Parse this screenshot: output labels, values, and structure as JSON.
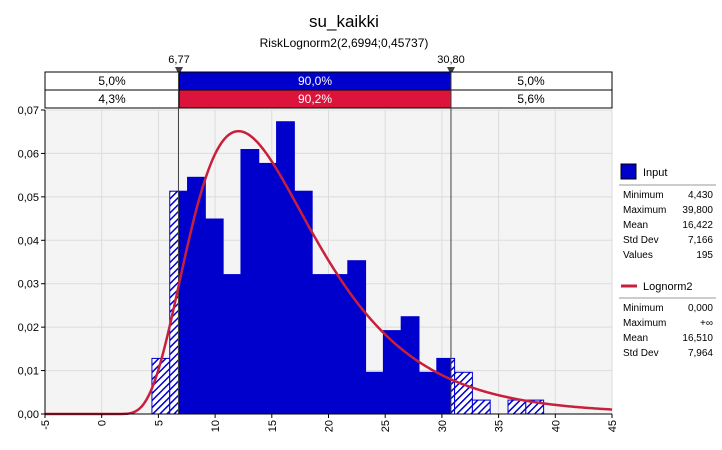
{
  "chart_data": {
    "type": "bar",
    "title": "su_kaikki",
    "subtitle": "RiskLognorm2(2,6994;0,45737)",
    "markers": {
      "left": "6,77",
      "right": "30,80",
      "left_value": 6.77,
      "right_value": 30.8
    },
    "bands": {
      "input": {
        "left": "5,0%",
        "middle": "90,0%",
        "right": "5,0%"
      },
      "fit": {
        "left": "4,3%",
        "middle": "90,2%",
        "right": "5,6%"
      }
    },
    "xlim": [
      -5,
      45
    ],
    "ylim": [
      0,
      0.07
    ],
    "x_ticks": [
      "-5",
      "0",
      "5",
      "10",
      "15",
      "20",
      "25",
      "30",
      "35",
      "40",
      "45"
    ],
    "x_tick_values": [
      -5,
      0,
      5,
      10,
      15,
      20,
      25,
      30,
      35,
      40,
      45
    ],
    "y_ticks": [
      "0,00",
      "0,01",
      "0,02",
      "0,03",
      "0,04",
      "0,05",
      "0,06",
      "0,07"
    ],
    "y_tick_values": [
      0,
      0.01,
      0.02,
      0.03,
      0.04,
      0.05,
      0.06,
      0.07
    ],
    "bin_width": 1.57,
    "bins_start": [
      4.43,
      6.0,
      7.57,
      9.14,
      10.71,
      12.28,
      13.85,
      15.42,
      16.99,
      18.56,
      20.13,
      21.7,
      23.27,
      24.84,
      26.41,
      27.98,
      29.55,
      31.12,
      32.69,
      34.26,
      35.83,
      37.4,
      38.97
    ],
    "series": [
      {
        "name": "Input",
        "color": "#0000cc",
        "values": [
          0.0128,
          0.0513,
          0.0545,
          0.0449,
          0.0321,
          0.0609,
          0.0577,
          0.0673,
          0.0513,
          0.0321,
          0.0321,
          0.0353,
          0.0096,
          0.0192,
          0.0224,
          0.0096,
          0.0128,
          0.0096,
          0.0032,
          0.0,
          0.0032,
          0.0032,
          0.0
        ]
      },
      {
        "name": "Lognorm2",
        "color": "#c8203c",
        "mu": 2.6994,
        "sigma": 0.45737
      }
    ],
    "grid": true,
    "legend_position": "right"
  },
  "legend": {
    "input_label": "Input",
    "input_color": "#0000cc",
    "input_stats": [
      {
        "label": "Minimum",
        "value": "4,430"
      },
      {
        "label": "Maximum",
        "value": "39,800"
      },
      {
        "label": "Mean",
        "value": "16,422"
      },
      {
        "label": "Std Dev",
        "value": "7,166"
      },
      {
        "label": "Values",
        "value": "195"
      }
    ],
    "fit_label": "Lognorm2",
    "fit_color": "#c8203c",
    "fit_stats": [
      {
        "label": "Minimum",
        "value": "0,000"
      },
      {
        "label": "Maximum",
        "value": "+∞"
      },
      {
        "label": "Mean",
        "value": "16,510"
      },
      {
        "label": "Std Dev",
        "value": "7,964"
      }
    ]
  },
  "colors": {
    "bar": "#0000cc",
    "band_input": "#0000cc",
    "band_fit": "#dc143c",
    "curve": "#c8203c",
    "plot_bg": "#f4f4f4",
    "grid": "#dcdcdc"
  }
}
